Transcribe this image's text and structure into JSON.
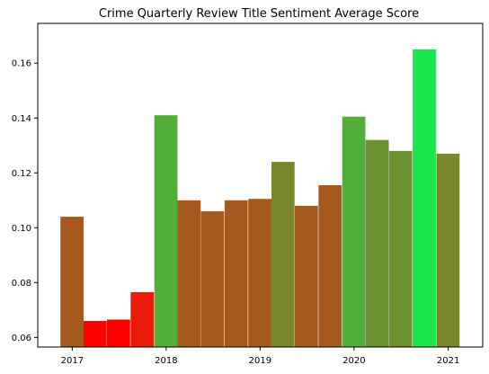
{
  "chart_data": {
    "type": "bar",
    "title": "Crime Quarterly Review Title Sentiment Average Score",
    "xlabel": "",
    "ylabel": "",
    "x_axis": {
      "ticks": [
        {
          "date": "2017-01-01",
          "label": "2017"
        },
        {
          "date": "2018-01-01",
          "label": "2018"
        },
        {
          "date": "2019-01-01",
          "label": "2019"
        },
        {
          "date": "2020-01-01",
          "label": "2020"
        },
        {
          "date": "2021-01-01",
          "label": "2021"
        }
      ],
      "range": [
        "2016-08-20",
        "2021-05-15"
      ]
    },
    "y_axis": {
      "ticks": [
        0.06,
        0.08,
        0.1,
        0.12,
        0.14,
        0.16
      ],
      "tick_labels": [
        "0.06",
        "0.08",
        "0.10",
        "0.12",
        "0.14",
        "0.16"
      ],
      "ylim": [
        0.0565,
        0.1745
      ]
    },
    "grid": false,
    "legend": "none",
    "bars": [
      {
        "quarter_end": "2016-12-31",
        "value": 0.104,
        "color": "#a5591f"
      },
      {
        "quarter_end": "2017-03-31",
        "value": 0.066,
        "color": "#ff0000"
      },
      {
        "quarter_end": "2017-06-30",
        "value": 0.0665,
        "color": "#ff0000"
      },
      {
        "quarter_end": "2017-09-30",
        "value": 0.0765,
        "color": "#e91b0b"
      },
      {
        "quarter_end": "2017-12-31",
        "value": 0.141,
        "color": "#52ad3a"
      },
      {
        "quarter_end": "2018-03-31",
        "value": 0.11,
        "color": "#a5591f"
      },
      {
        "quarter_end": "2018-06-30",
        "value": 0.106,
        "color": "#a5591f"
      },
      {
        "quarter_end": "2018-09-30",
        "value": 0.11,
        "color": "#a5591f"
      },
      {
        "quarter_end": "2018-12-31",
        "value": 0.1105,
        "color": "#a5591f"
      },
      {
        "quarter_end": "2019-03-31",
        "value": 0.124,
        "color": "#7b872d"
      },
      {
        "quarter_end": "2019-06-30",
        "value": 0.108,
        "color": "#a5591f"
      },
      {
        "quarter_end": "2019-09-30",
        "value": 0.1155,
        "color": "#a5591f"
      },
      {
        "quarter_end": "2019-12-31",
        "value": 0.1405,
        "color": "#52ad3a"
      },
      {
        "quarter_end": "2020-03-31",
        "value": 0.132,
        "color": "#6b9231"
      },
      {
        "quarter_end": "2020-06-30",
        "value": 0.128,
        "color": "#6b9231"
      },
      {
        "quarter_end": "2020-09-30",
        "value": 0.165,
        "color": "#18e64c"
      },
      {
        "quarter_end": "2020-12-31",
        "value": 0.127,
        "color": "#7b872d"
      }
    ]
  }
}
